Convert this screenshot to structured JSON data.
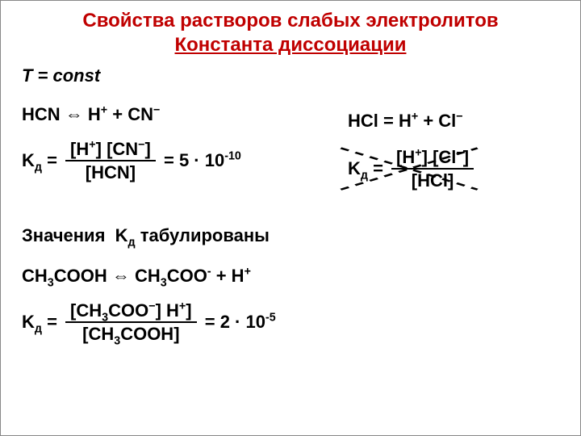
{
  "title": {
    "line1": "Свойства растворов слабых электролитов",
    "line2": "Константа диссоциации"
  },
  "tconst": "T = const",
  "hcn": {
    "equation_html": "HCN <span class='darrow'>&#8660;</span> H<sup>+</sup> + CN<sup>&minus;</sup>",
    "kd_prefix_html": "K<sub>д</sub> = ",
    "numerator_html": "[H<sup>+</sup>] [CN<sup>&minus;</sup>]",
    "denominator_html": "[HCN]",
    "value_html": " = 5 &middot; 10<sup>-10</sup>"
  },
  "tabulated_html": "Значения &nbsp;K<sub>д</sub> табулированы",
  "acetic": {
    "equation_html": "CH<sub>3</sub>COOH <span class='darrow'>&#8660;</span> CH<sub>3</sub>COO<sup>-</sup> + H<sup>+</sup>",
    "kd_prefix_html": "K<sub>д</sub> = ",
    "numerator_html": "[CH<sub>3</sub>COO<sup>&minus;</sup>] H<sup>+</sup>]",
    "denominator_html": "[CH<sub>3</sub>COOH]",
    "value_html": " = 2 &middot; 10<sup>-5</sup>"
  },
  "hcl": {
    "equation_html": "HCl = H<sup>+</sup> + Cl<sup>&minus;</sup>",
    "kd_prefix_html": "K<sub>д</sub> = ",
    "numerator_html": "[H<sup>+</sup>] [Cl<sup>&minus;</sup>]",
    "denominator_html": "[HCl]"
  },
  "colors": {
    "title": "#c00000",
    "text": "#000000",
    "cross": "#000000"
  }
}
